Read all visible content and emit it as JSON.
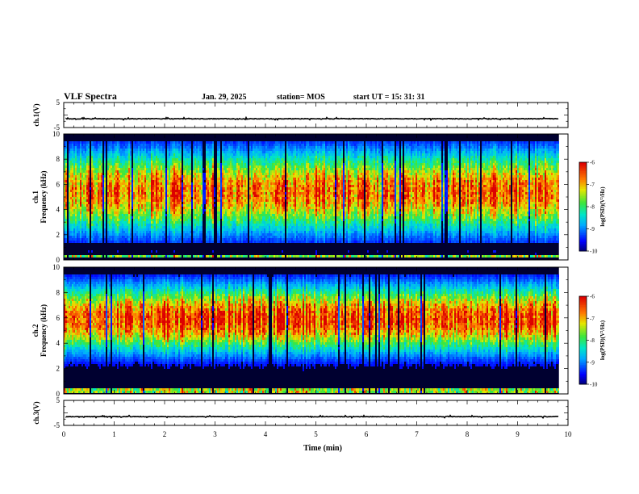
{
  "header": {
    "title": "VLF Spectra",
    "date": "Jan. 29, 2025",
    "station": "station= MOS",
    "start": "start  UT =   15: 31: 31"
  },
  "chart_data": [
    {
      "type": "line",
      "panel": "ch1-waveform",
      "ylabel": "ch.1(V)",
      "ylim": [
        -5,
        5
      ],
      "yticks": [
        {
          "v": 5,
          "t": "5"
        },
        {
          "v": -5,
          "t": "-5"
        }
      ],
      "baseline": -1.5
    },
    {
      "type": "heatmap",
      "panel": "ch1-spectrogram",
      "ylabel": "ch.1\nFrequency (kHz)",
      "ylim": [
        0,
        10
      ],
      "yticks": [
        "0",
        "2",
        "4",
        "6",
        "8",
        "10"
      ],
      "band_peak_khz": 5.5,
      "colorbar": {
        "label": "log(PSD)(V²/Hz)",
        "range": [
          -10,
          -6
        ],
        "ticks": [
          "-6",
          "-7",
          "-8",
          "-9",
          "-10"
        ]
      }
    },
    {
      "type": "heatmap",
      "panel": "ch2-spectrogram",
      "ylabel": "ch.2\nFrequency (kHz)",
      "ylim": [
        0,
        10
      ],
      "yticks": [
        "0",
        "2",
        "4",
        "6",
        "8",
        "10"
      ],
      "band_peak_khz": 6.0,
      "colorbar": {
        "label": "log(PSD)(V²/Hz)",
        "range": [
          -10,
          -6
        ],
        "ticks": [
          "-6",
          "-7",
          "-8",
          "-9",
          "-10"
        ]
      }
    },
    {
      "type": "line",
      "panel": "ch3-waveform",
      "ylabel": "ch.3(V)",
      "ylim": [
        -5,
        5
      ],
      "yticks": [
        {
          "v": 5,
          "t": "5"
        },
        {
          "v": -5,
          "t": "-5"
        }
      ],
      "baseline": -1.5
    }
  ],
  "xaxis": {
    "label": "Time  (min)",
    "range": [
      0,
      10
    ],
    "data_end": 9.82,
    "ticks": [
      "0",
      "1",
      "2",
      "3",
      "4",
      "5",
      "6",
      "7",
      "8",
      "9",
      "10"
    ]
  }
}
